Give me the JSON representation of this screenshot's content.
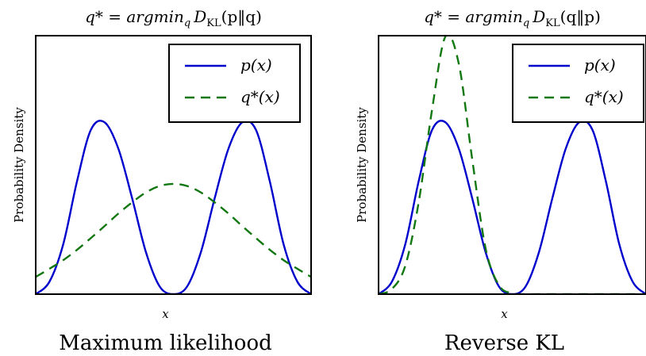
{
  "chart_data": [
    {
      "type": "line",
      "title": "q* = argmin_q D_KL(p‖q)",
      "title_parts": {
        "main": "q* = argmin",
        "sub": "q",
        "d": "D",
        "kl": "KL",
        "arg": "(p‖q)"
      },
      "caption": "Maximum likelihood",
      "xlabel": "x",
      "ylabel": "Probability Density",
      "xlim": [
        -4,
        4
      ],
      "ylim": [
        0,
        0.6
      ],
      "grid": false,
      "legend_position": "top-right",
      "series": [
        {
          "name": "p(x)",
          "color": "#0000cc",
          "style": "solid",
          "x": [
            -4.0,
            -3.6,
            -3.2,
            -2.8,
            -2.4,
            -2.0,
            -1.6,
            -1.2,
            -0.8,
            -0.4,
            0.0,
            0.4,
            0.8,
            1.2,
            1.6,
            2.0,
            2.4,
            2.8,
            3.2,
            3.6,
            4.0
          ],
          "values": [
            0.0,
            0.029,
            0.116,
            0.262,
            0.381,
            0.399,
            0.338,
            0.223,
            0.098,
            0.018,
            0.0,
            0.018,
            0.098,
            0.223,
            0.338,
            0.399,
            0.381,
            0.262,
            0.116,
            0.029,
            0.0
          ]
        },
        {
          "name": "q*(x)",
          "color": "#117711",
          "style": "dashed",
          "x": [
            -4.0,
            -3.6,
            -3.2,
            -2.8,
            -2.4,
            -2.0,
            -1.6,
            -1.2,
            -0.8,
            -0.4,
            0.0,
            0.4,
            0.8,
            1.2,
            1.6,
            2.0,
            2.4,
            2.8,
            3.2,
            3.6,
            4.0
          ],
          "values": [
            0.04,
            0.059,
            0.079,
            0.103,
            0.13,
            0.158,
            0.187,
            0.213,
            0.236,
            0.251,
            0.256,
            0.251,
            0.236,
            0.213,
            0.187,
            0.158,
            0.13,
            0.103,
            0.079,
            0.059,
            0.04
          ]
        }
      ],
      "legend": [
        {
          "label": "p(x)",
          "sub": ""
        },
        {
          "label": "q*(x)",
          "sub": ""
        }
      ]
    },
    {
      "type": "line",
      "title": "q* = argmin_q D_KL(q‖p)",
      "title_parts": {
        "main": "q* = argmin",
        "sub": "q",
        "d": "D",
        "kl": "KL",
        "arg": "(q‖p)"
      },
      "caption": "Reverse KL",
      "xlabel": "x",
      "ylabel": "Probability Density",
      "xlim": [
        -4,
        4
      ],
      "ylim": [
        0,
        0.6
      ],
      "grid": false,
      "legend_position": "top-right",
      "series": [
        {
          "name": "p(x)",
          "color": "#0000cc",
          "style": "solid",
          "x": [
            -4.0,
            -3.6,
            -3.2,
            -2.8,
            -2.4,
            -2.0,
            -1.6,
            -1.2,
            -0.8,
            -0.4,
            0.0,
            0.4,
            0.8,
            1.2,
            1.6,
            2.0,
            2.4,
            2.8,
            3.2,
            3.6,
            4.0
          ],
          "values": [
            0.0,
            0.029,
            0.116,
            0.262,
            0.381,
            0.399,
            0.338,
            0.223,
            0.098,
            0.018,
            0.0,
            0.018,
            0.098,
            0.223,
            0.338,
            0.399,
            0.381,
            0.262,
            0.116,
            0.029,
            0.0
          ]
        },
        {
          "name": "q*(x)",
          "color": "#117711",
          "style": "dashed",
          "x": [
            -4.0,
            -3.6,
            -3.2,
            -2.8,
            -2.4,
            -2.0,
            -1.6,
            -1.2,
            -0.8,
            -0.4,
            0.0,
            0.4,
            0.8,
            1.2,
            1.6,
            2.0,
            2.4,
            2.8,
            3.2,
            3.6,
            4.0
          ],
          "values": [
            0.0,
            0.012,
            0.066,
            0.213,
            0.428,
            0.598,
            0.535,
            0.314,
            0.107,
            0.021,
            0.002,
            0.0,
            0.0,
            0.0,
            0.0,
            0.0,
            0.0,
            0.0,
            0.0,
            0.0,
            0.0
          ]
        }
      ],
      "legend": [
        {
          "label": "p(x)",
          "sub": ""
        },
        {
          "label": "q*(x)",
          "sub": ""
        }
      ]
    }
  ]
}
